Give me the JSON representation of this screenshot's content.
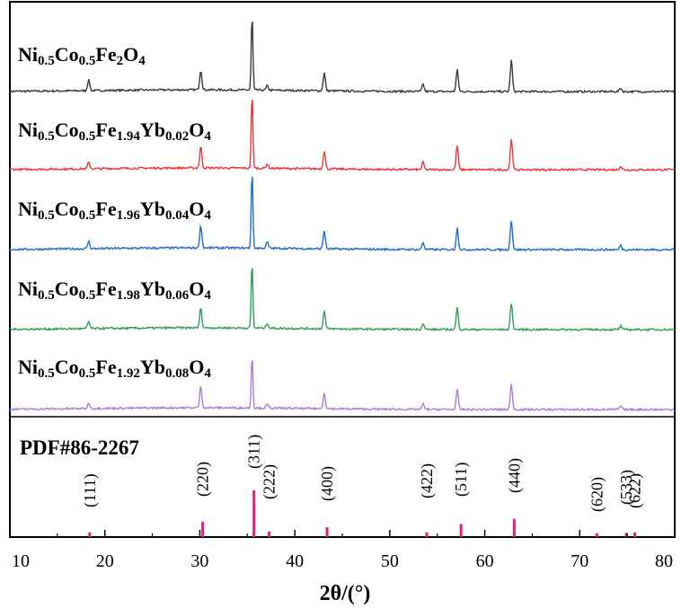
{
  "chart_data": {
    "type": "line",
    "xlabel": "2θ/(°)",
    "ylabel": "",
    "xlim": [
      10,
      80
    ],
    "x_ticks": [
      "10",
      "20",
      "30",
      "40",
      "50",
      "60",
      "70",
      "80"
    ],
    "grid": false,
    "reference_label": "PDF#86-2267",
    "series": [
      {
        "name": "Ni0.5Co0.5Fe2O4",
        "label_parts": [
          [
            "Ni",
            ""
          ],
          [
            "0.5",
            "sub"
          ],
          [
            "Co",
            ""
          ],
          [
            "0.5",
            "sub"
          ],
          [
            "Fe",
            ""
          ],
          [
            "2",
            "sub"
          ],
          [
            "O",
            ""
          ],
          [
            "4",
            "sub"
          ]
        ],
        "color": "#3a3a3a",
        "peaks": [
          [
            18.3,
            12
          ],
          [
            30.1,
            22
          ],
          [
            35.5,
            85
          ],
          [
            37.1,
            5
          ],
          [
            43.1,
            20
          ],
          [
            53.5,
            8
          ],
          [
            57.1,
            24
          ],
          [
            62.8,
            35
          ],
          [
            74.3,
            4
          ]
        ]
      },
      {
        "name": "Ni0.5Co0.5Fe1.94Yb0.02O4",
        "label_parts": [
          [
            "Ni",
            ""
          ],
          [
            "0.5",
            "sub"
          ],
          [
            "Co",
            ""
          ],
          [
            "0.5",
            "sub"
          ],
          [
            "Fe",
            ""
          ],
          [
            "1.94",
            "sub"
          ],
          [
            "Yb",
            ""
          ],
          [
            "0.02",
            "sub"
          ],
          [
            "O",
            ""
          ],
          [
            "4",
            "sub"
          ]
        ],
        "color": "#e8383b",
        "peaks": [
          [
            18.3,
            7
          ],
          [
            30.1,
            24
          ],
          [
            35.5,
            85
          ],
          [
            37.1,
            5
          ],
          [
            43.1,
            20
          ],
          [
            53.5,
            8
          ],
          [
            57.1,
            27
          ],
          [
            62.8,
            35
          ],
          [
            74.3,
            4
          ]
        ]
      },
      {
        "name": "Ni0.5Co0.5Fe1.96Yb0.04O4",
        "label_parts": [
          [
            "Ni",
            ""
          ],
          [
            "0.5",
            "sub"
          ],
          [
            "Co",
            ""
          ],
          [
            "0.5",
            "sub"
          ],
          [
            "Fe",
            ""
          ],
          [
            "1.96",
            "sub"
          ],
          [
            "Yb",
            ""
          ],
          [
            "0.04",
            "sub"
          ],
          [
            "O",
            ""
          ],
          [
            "4",
            "sub"
          ]
        ],
        "color": "#1f6ccf",
        "peaks": [
          [
            18.3,
            8
          ],
          [
            30.1,
            25
          ],
          [
            35.5,
            88
          ],
          [
            37.1,
            7
          ],
          [
            43.1,
            20
          ],
          [
            53.5,
            8
          ],
          [
            57.1,
            24
          ],
          [
            62.8,
            33
          ],
          [
            74.3,
            5
          ]
        ]
      },
      {
        "name": "Ni0.5Co0.5Fe1.98Yb0.06O4",
        "label_parts": [
          [
            "Ni",
            ""
          ],
          [
            "0.5",
            "sub"
          ],
          [
            "Co",
            ""
          ],
          [
            "0.5",
            "sub"
          ],
          [
            "Fe",
            ""
          ],
          [
            "1.98",
            "sub"
          ],
          [
            "Yb",
            ""
          ],
          [
            "0.06",
            "sub"
          ],
          [
            "O",
            ""
          ],
          [
            "4",
            "sub"
          ]
        ],
        "color": "#2e9e5a",
        "peaks": [
          [
            18.3,
            8
          ],
          [
            30.1,
            22
          ],
          [
            35.5,
            75
          ],
          [
            37.1,
            6
          ],
          [
            43.1,
            20
          ],
          [
            53.5,
            7
          ],
          [
            57.1,
            24
          ],
          [
            62.8,
            30
          ],
          [
            74.3,
            4
          ]
        ]
      },
      {
        "name": "Ni0.5Co0.5Fe1.92Yb0.08O4",
        "label_parts": [
          [
            "Ni",
            ""
          ],
          [
            "0.5",
            "sub"
          ],
          [
            "Co",
            ""
          ],
          [
            "0.5",
            "sub"
          ],
          [
            "Fe",
            ""
          ],
          [
            "1.92",
            "sub"
          ],
          [
            "Yb",
            ""
          ],
          [
            "0.08",
            "sub"
          ],
          [
            "O",
            ""
          ],
          [
            "4",
            "sub"
          ]
        ],
        "color": "#a77fd8",
        "peaks": [
          [
            18.3,
            6
          ],
          [
            30.1,
            24
          ],
          [
            35.5,
            60
          ],
          [
            37.1,
            4
          ],
          [
            43.1,
            18
          ],
          [
            53.5,
            6
          ],
          [
            57.1,
            22
          ],
          [
            62.8,
            28
          ],
          [
            74.3,
            4
          ]
        ]
      }
    ],
    "reference": {
      "color": "#e0207e",
      "lines": [
        {
          "hkl": "(111)",
          "x": 18.4,
          "intensity": 10
        },
        {
          "hkl": "(220)",
          "x": 30.3,
          "intensity": 33
        },
        {
          "hkl": "(311)",
          "x": 35.7,
          "intensity": 100
        },
        {
          "hkl": "(222)",
          "x": 37.3,
          "intensity": 12
        },
        {
          "hkl": "(400)",
          "x": 43.4,
          "intensity": 21
        },
        {
          "hkl": "(422)",
          "x": 53.9,
          "intensity": 10
        },
        {
          "hkl": "(511)",
          "x": 57.5,
          "intensity": 28
        },
        {
          "hkl": "(440)",
          "x": 63.1,
          "intensity": 39
        },
        {
          "hkl": "(620)",
          "x": 71.8,
          "intensity": 8
        },
        {
          "hkl": "(533)",
          "x": 74.9,
          "intensity": 9
        },
        {
          "hkl": "(622)",
          "x": 75.8,
          "intensity": 10
        }
      ]
    }
  }
}
